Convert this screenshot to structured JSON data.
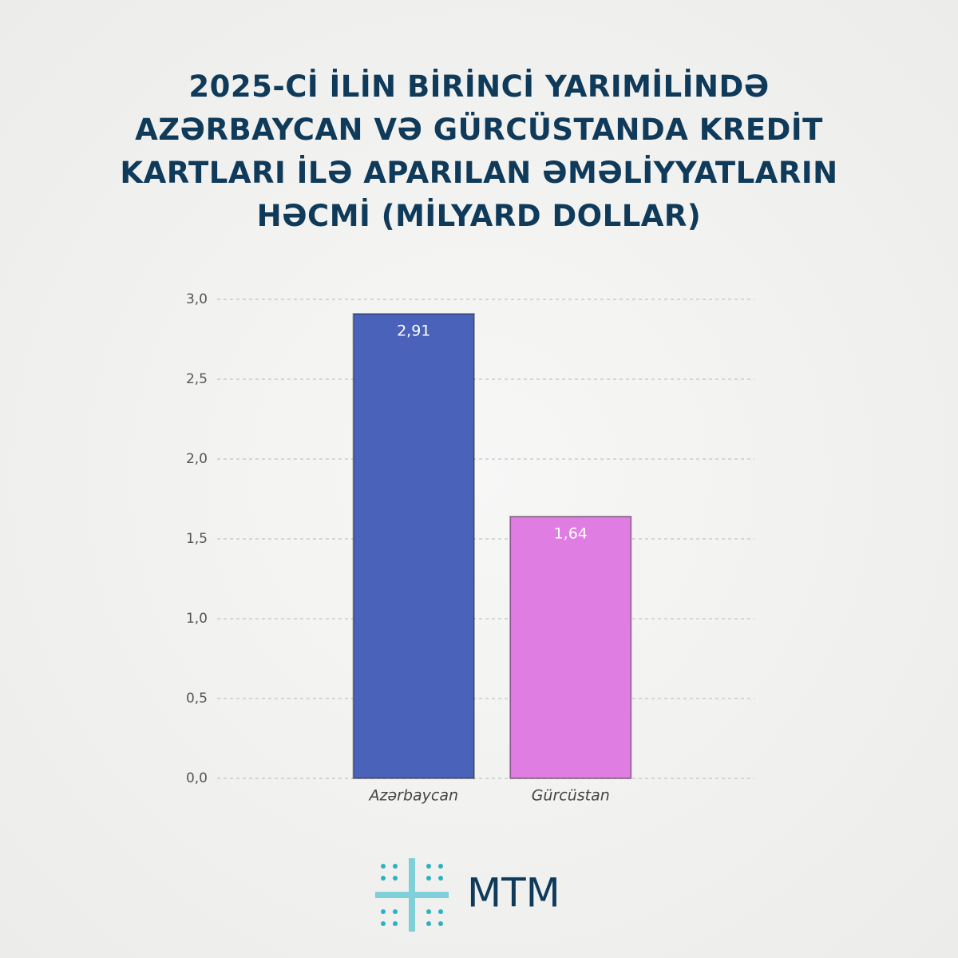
{
  "chart_data": {
    "type": "bar",
    "title": "2025-Cİ İLİN BİRİNCİ YARIMİLİNDƏ AZƏRBAYCAN VƏ GÜRCÜSTANDA KREDİT KARTLARI İLƏ APARILAN ƏMƏLİYYATLARIN HƏCMİ (MİLYARD DOLLAR)",
    "categories": [
      "Azərbaycan",
      "Gürcüstan"
    ],
    "values": [
      2.91,
      1.64
    ],
    "value_labels": [
      "2,91",
      "1,64"
    ],
    "colors": [
      "#4a62b9",
      "#e07de3"
    ],
    "ylim": [
      0,
      3
    ],
    "yticks": [
      {
        "value": 0,
        "label": "0,0"
      },
      {
        "value": 0.5,
        "label": "0,5"
      },
      {
        "value": 1,
        "label": "1,0"
      },
      {
        "value": 1.5,
        "label": "1,5"
      },
      {
        "value": 2,
        "label": "2,0"
      },
      {
        "value": 2.5,
        "label": "2,5"
      },
      {
        "value": 3,
        "label": "3,0"
      }
    ],
    "grid": true
  },
  "logo": {
    "text": "MTM"
  }
}
